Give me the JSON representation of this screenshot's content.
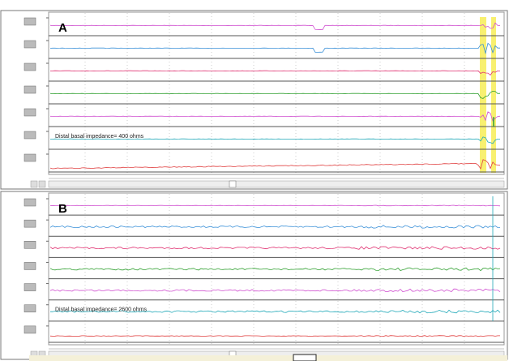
{
  "panels": [
    {
      "label": "A",
      "annotation": "Distal basal impedance= 400 ohms"
    },
    {
      "label": "B",
      "annotation": "Distal basal impedance= 2600 ohms"
    }
  ]
}
